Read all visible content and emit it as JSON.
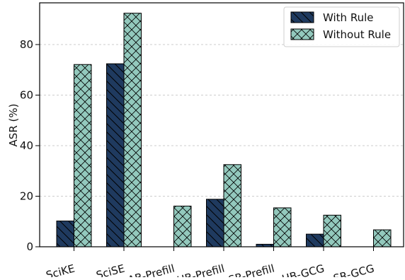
{
  "chart_data": {
    "type": "bar",
    "title": "",
    "xlabel": "",
    "ylabel": "ASR (%)",
    "categories": [
      "SciKE",
      "SciSE",
      "AB-Prefill",
      "HB-Prefill",
      "SR-Prefill",
      "HB-GCG",
      "SR-GCG"
    ],
    "series": [
      {
        "name": "With Rule",
        "values": [
          10.2,
          72.4,
          0,
          18.8,
          1.0,
          5.0,
          0
        ],
        "color": "#1f3a5f",
        "hatch": "diagonal-back"
      },
      {
        "name": "Without Rule",
        "values": [
          72.1,
          92.4,
          16.1,
          32.5,
          15.4,
          12.5,
          6.7
        ],
        "color": "#93c9bd",
        "hatch": "cross"
      }
    ],
    "ylim": [
      0,
      96.5
    ],
    "yticks": [
      0,
      20,
      40,
      60,
      80
    ],
    "grid": "y-dashed",
    "legend_position": "top-right"
  }
}
